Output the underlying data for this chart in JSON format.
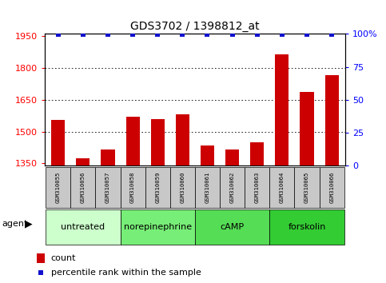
{
  "title": "GDS3702 / 1398812_at",
  "samples": [
    "GSM310055",
    "GSM310056",
    "GSM310057",
    "GSM310058",
    "GSM310059",
    "GSM310060",
    "GSM310061",
    "GSM310062",
    "GSM310063",
    "GSM310064",
    "GSM310065",
    "GSM310066"
  ],
  "counts": [
    1555,
    1375,
    1415,
    1570,
    1560,
    1580,
    1435,
    1415,
    1450,
    1865,
    1685,
    1765
  ],
  "percentile_ranks_y": [
    99.5,
    99.5,
    99.5,
    99.5,
    99.5,
    99.5,
    99.5,
    99.5,
    99.5,
    99.5,
    99.5,
    99.5
  ],
  "bar_color": "#cc0000",
  "dot_color": "#1111cc",
  "ylim_left": [
    1340,
    1960
  ],
  "ylim_right": [
    0,
    100
  ],
  "yticks_left": [
    1350,
    1500,
    1650,
    1800,
    1950
  ],
  "yticks_right": [
    0,
    25,
    50,
    75,
    100
  ],
  "ytick_labels_right": [
    "0",
    "25",
    "50",
    "75",
    "100%"
  ],
  "groups": [
    {
      "label": "untreated",
      "start": 0,
      "end": 3,
      "color": "#ccffcc"
    },
    {
      "label": "norepinephrine",
      "start": 3,
      "end": 6,
      "color": "#77ee77"
    },
    {
      "label": "cAMP",
      "start": 6,
      "end": 9,
      "color": "#55dd55"
    },
    {
      "label": "forskolin",
      "start": 9,
      "end": 12,
      "color": "#33cc33"
    }
  ],
  "agent_label": "agent",
  "legend_count_label": "count",
  "legend_pct_label": "percentile rank within the sample",
  "background_color": "#ffffff",
  "grid_color": "#000000",
  "bar_width": 0.55,
  "sample_box_color": "#c8c8c8",
  "grid_dotted_vals": [
    1500,
    1650,
    1800
  ]
}
